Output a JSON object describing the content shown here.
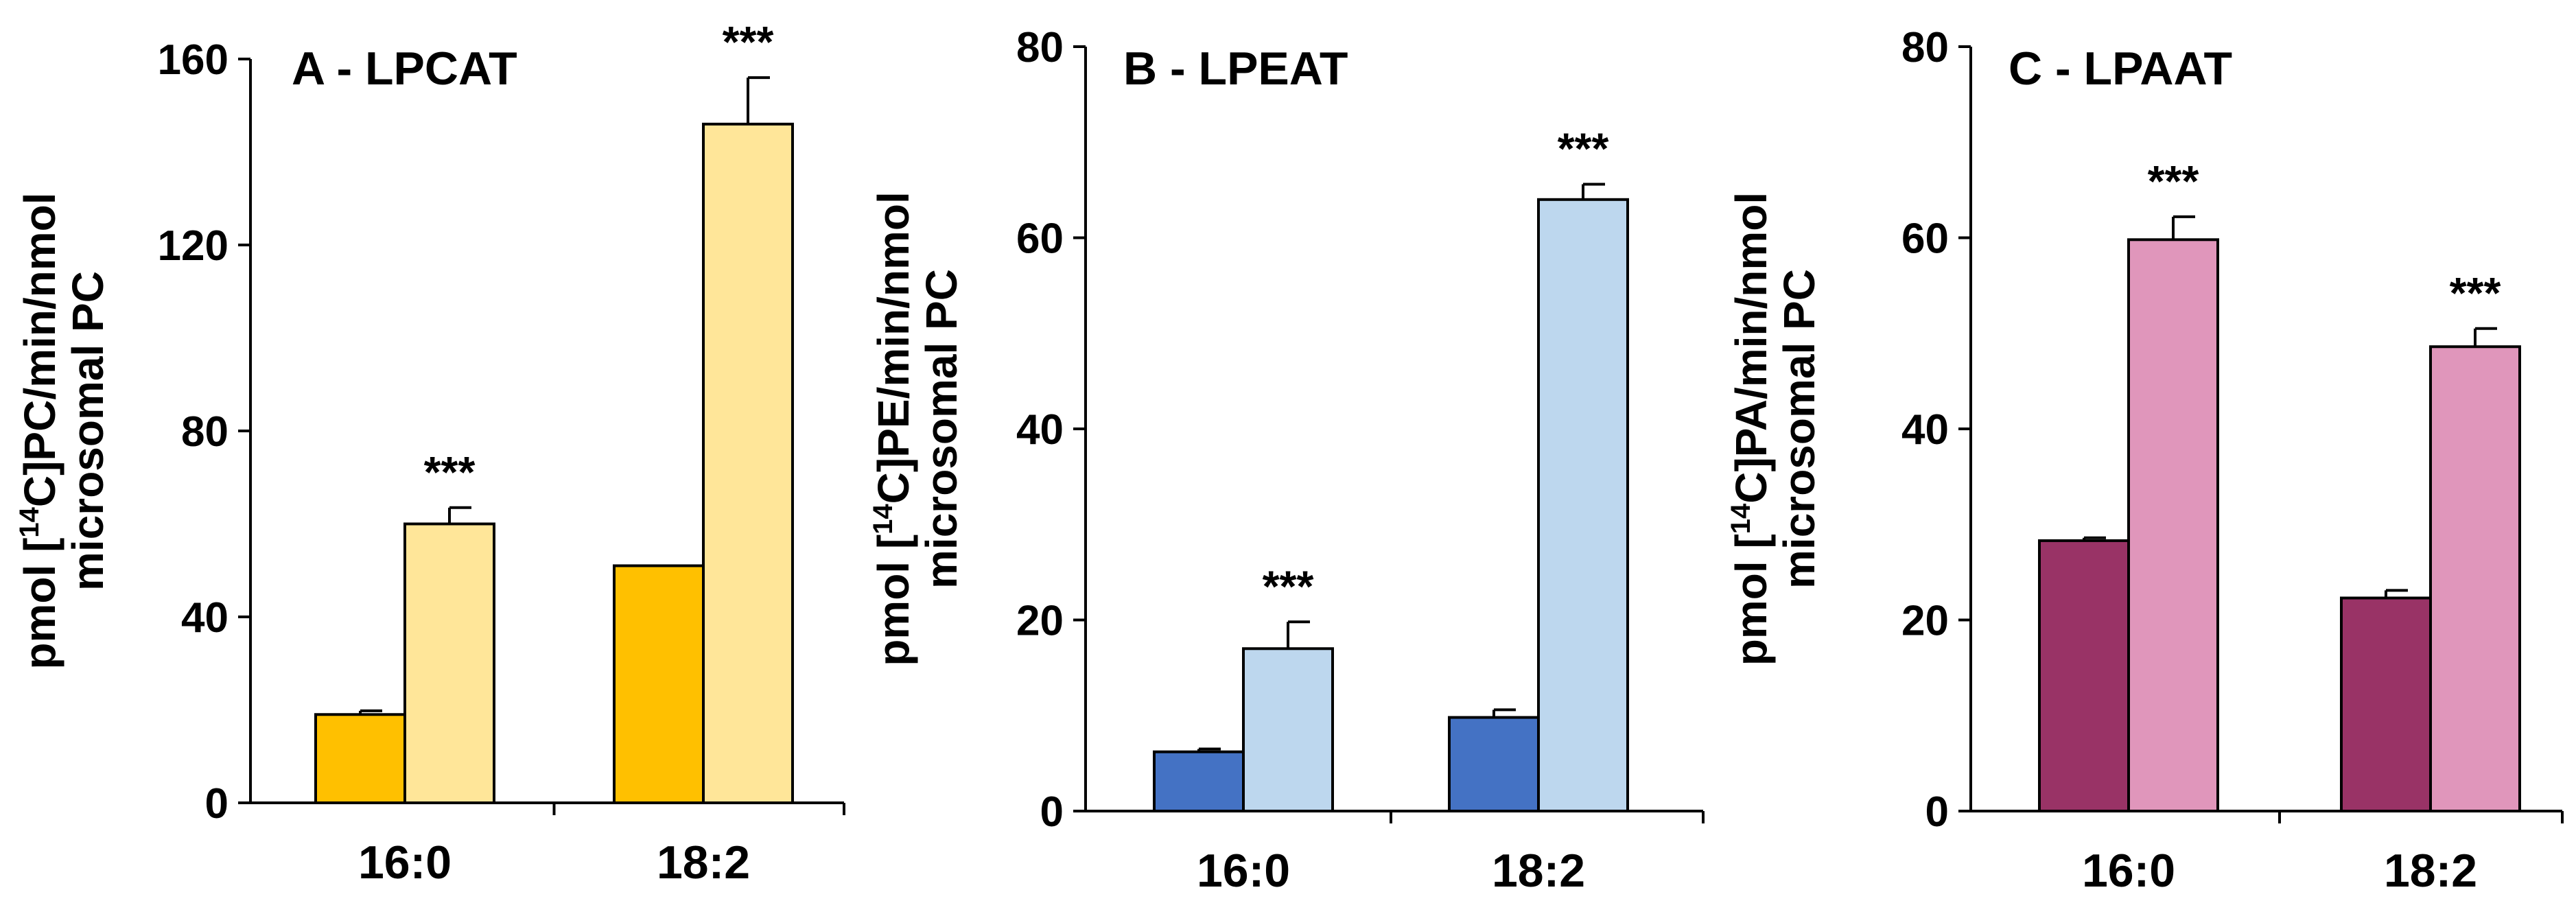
{
  "chart_data": [
    {
      "type": "bar",
      "title": "A - LPCAT",
      "ylabel_line1": "pmol [",
      "ylabel_sup": "14",
      "ylabel_line1_rest": "C]PC/min/nmol",
      "ylabel_line2": "microsomal PC",
      "categories": [
        "16:0",
        "18:2"
      ],
      "ylim": [
        0,
        160
      ],
      "yticks": [
        "0",
        "40",
        "80",
        "120",
        "160"
      ],
      "series": [
        {
          "values": [
            19,
            51
          ],
          "errors": [
            0.8,
            0
          ],
          "color": "#FFC000"
        },
        {
          "values": [
            60,
            146
          ],
          "errors": [
            3.5,
            10
          ],
          "color": "#FFE699"
        }
      ],
      "annotations": [
        {
          "category": 0,
          "series": 1,
          "text": "***"
        },
        {
          "category": 1,
          "series": 1,
          "text": "***"
        }
      ]
    },
    {
      "type": "bar",
      "title": "B - LPEAT",
      "ylabel_line1": "pmol [",
      "ylabel_sup": "14",
      "ylabel_line1_rest": "C]PE/min/nmol",
      "ylabel_line2": "microsomal PC",
      "categories": [
        "16:0",
        "18:2"
      ],
      "ylim": [
        0,
        80
      ],
      "yticks": [
        "0",
        "20",
        "40",
        "60",
        "80"
      ],
      "series": [
        {
          "values": [
            6.2,
            9.8
          ],
          "errors": [
            0.3,
            0.8
          ],
          "color": "#4472C4"
        },
        {
          "values": [
            17,
            64
          ],
          "errors": [
            2.8,
            1.6
          ],
          "color": "#BDD7EE"
        }
      ],
      "annotations": [
        {
          "category": 0,
          "series": 1,
          "text": "***"
        },
        {
          "category": 1,
          "series": 1,
          "text": "***"
        }
      ]
    },
    {
      "type": "bar",
      "title": "C - LPAAT",
      "ylabel_line1": "pmol [",
      "ylabel_sup": "14",
      "ylabel_line1_rest": "C]PA/min/nmol",
      "ylabel_line2": "microsomal PC",
      "categories": [
        "16:0",
        "18:2"
      ],
      "ylim": [
        0,
        80
      ],
      "yticks": [
        "0",
        "20",
        "40",
        "60",
        "80"
      ],
      "series": [
        {
          "values": [
            28.3,
            22.3
          ],
          "errors": [
            0.3,
            0.8
          ],
          "color": "#993366"
        },
        {
          "values": [
            59.8,
            48.6
          ],
          "errors": [
            2.4,
            1.9
          ],
          "color": "#E096BB"
        }
      ],
      "annotations": [
        {
          "category": 0,
          "series": 1,
          "text": "***"
        },
        {
          "category": 1,
          "series": 1,
          "text": "***"
        }
      ]
    }
  ]
}
